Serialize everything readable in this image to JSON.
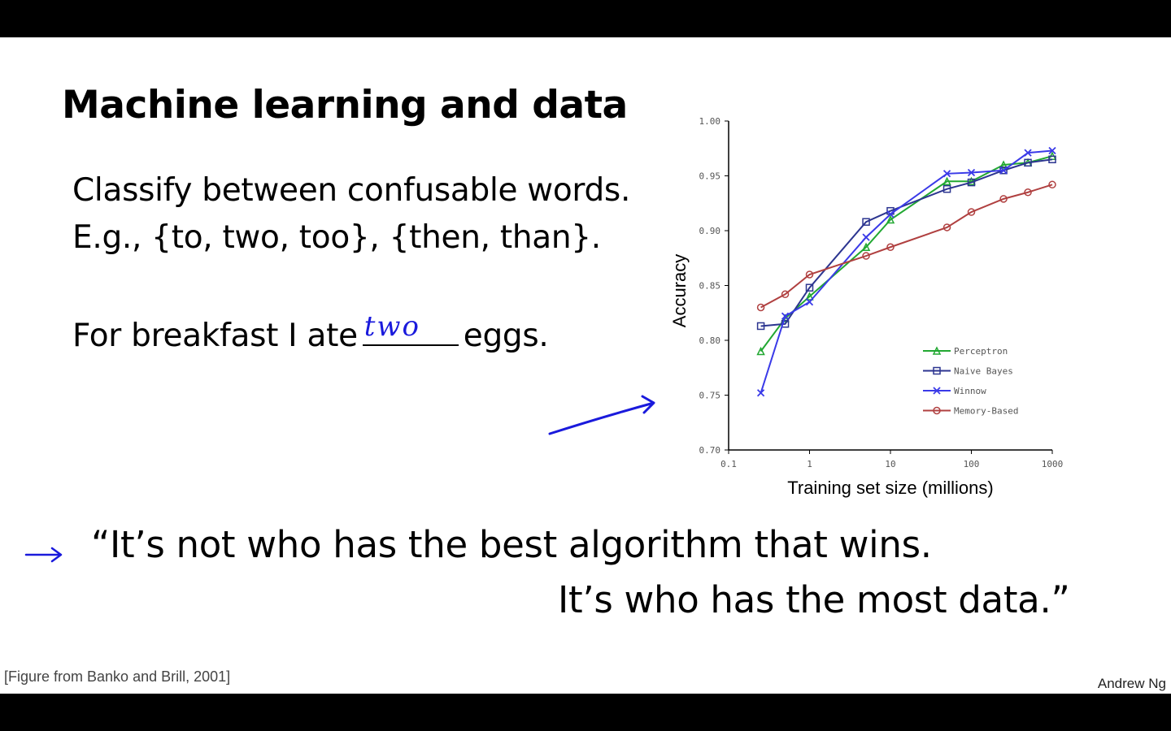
{
  "slide": {
    "title": "Machine learning and data",
    "line1": "Classify between confusable words.",
    "line2": "E.g., {to, two, too}, {then, than}.",
    "line3_before": "For breakfast I ate",
    "line3_handwritten": "two",
    "line3_after": "eggs.",
    "quote_line1": "“It’s not who has the best algorithm that wins.",
    "quote_line2": "It’s who has the most data.”",
    "citation": "[Figure from Banko and Brill, 2001]",
    "author": "Andrew Ng",
    "annotation_color": "#1a1adc"
  },
  "chart_data": {
    "type": "line",
    "title": "",
    "xlabel": "Training set size (millions)",
    "ylabel": "Accuracy",
    "xscale": "log",
    "xlim": [
      0.1,
      1000
    ],
    "ylim": [
      0.7,
      1.0
    ],
    "x_ticks": [
      "0.1",
      "1",
      "10",
      "100",
      "1000"
    ],
    "y_ticks": [
      "0.70",
      "0.75",
      "0.80",
      "0.85",
      "0.90",
      "0.95",
      "1.00"
    ],
    "legend_position": "lower-right",
    "x": [
      0.25,
      0.5,
      1,
      5,
      10,
      50,
      100,
      250,
      500,
      1000
    ],
    "series": [
      {
        "name": "Perceptron",
        "color": "#22a832",
        "marker": "triangle",
        "values": [
          0.79,
          0.82,
          0.84,
          0.885,
          0.91,
          0.945,
          0.945,
          0.96,
          0.962,
          0.968
        ]
      },
      {
        "name": "Naive Bayes",
        "color": "#2c3590",
        "marker": "square",
        "values": [
          0.813,
          0.815,
          0.848,
          0.908,
          0.918,
          0.938,
          0.944,
          0.955,
          0.962,
          0.965
        ]
      },
      {
        "name": "Winnow",
        "color": "#3a3ae8",
        "marker": "x",
        "values": [
          0.752,
          0.822,
          0.835,
          0.894,
          0.915,
          0.952,
          0.953,
          0.955,
          0.971,
          0.973
        ]
      },
      {
        "name": "Memory-Based",
        "color": "#b04040",
        "marker": "circle",
        "values": [
          0.83,
          0.842,
          0.86,
          0.877,
          0.885,
          0.903,
          0.917,
          0.929,
          0.935,
          0.942
        ]
      }
    ]
  }
}
